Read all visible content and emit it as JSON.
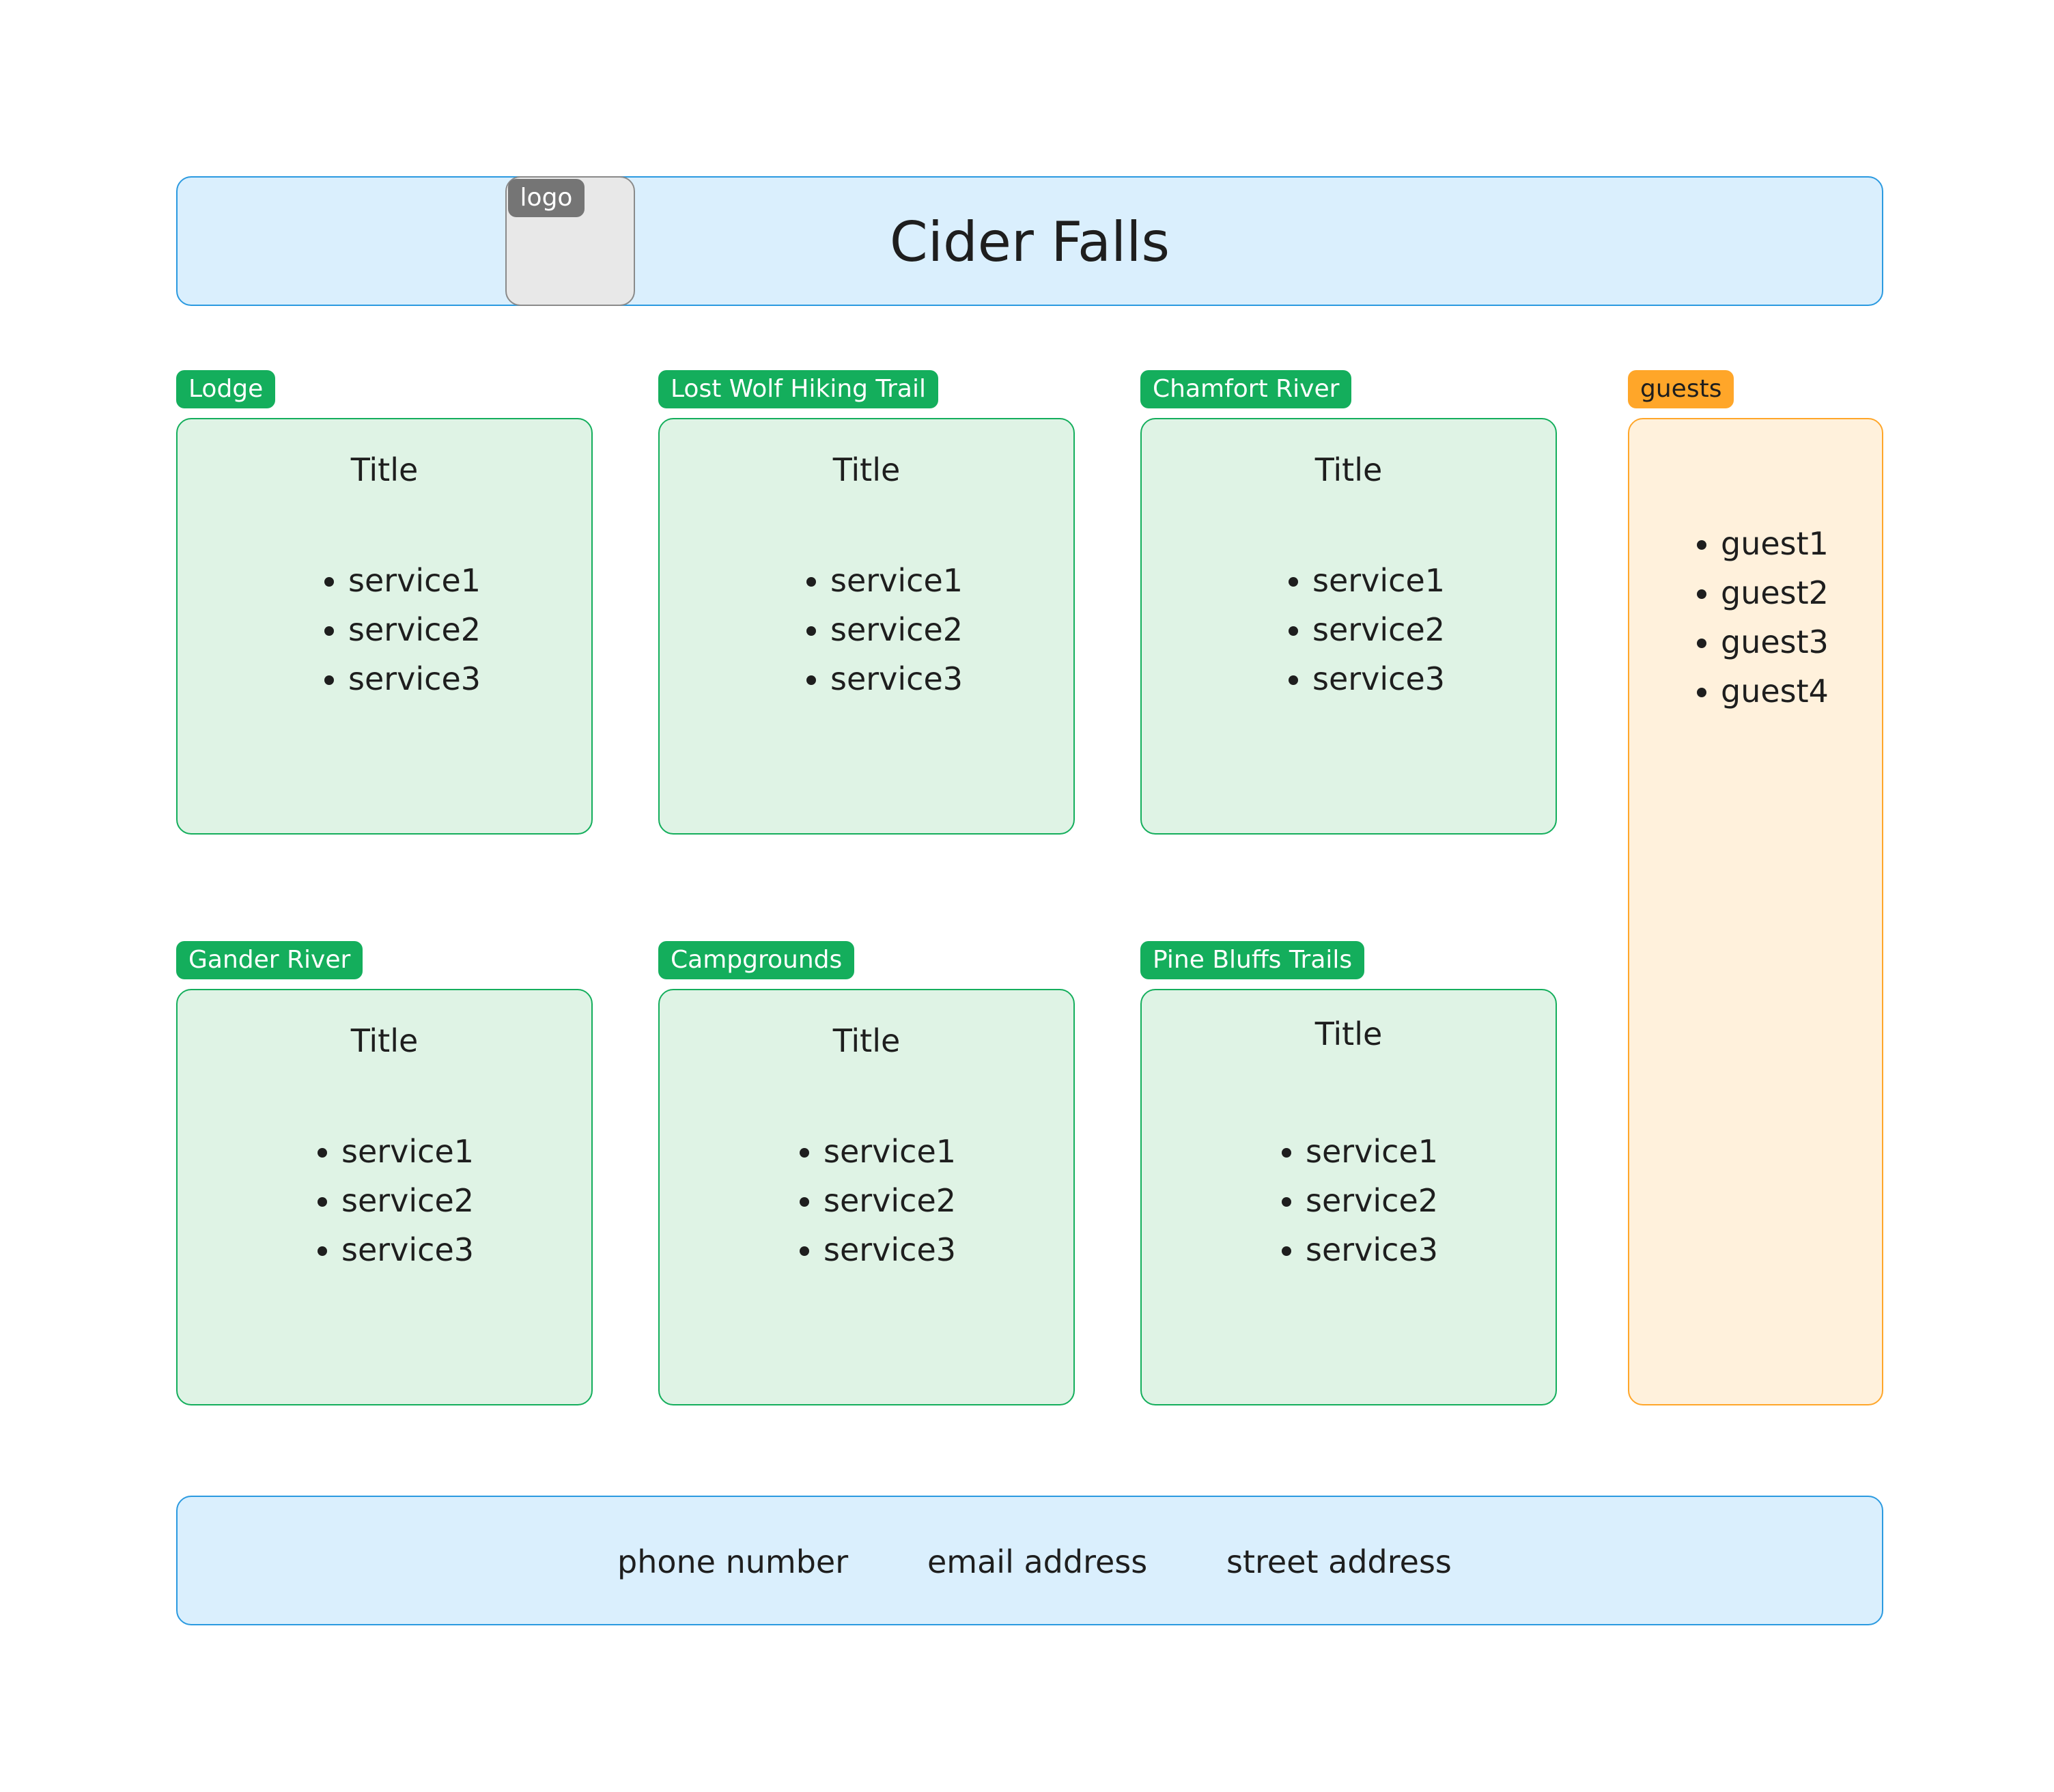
{
  "header": {
    "title": "Cider Falls",
    "logo_label": "logo"
  },
  "sections": [
    {
      "tag": "Lodge",
      "title": "Title",
      "services": [
        "service1",
        "service2",
        "service3"
      ]
    },
    {
      "tag": "Lost Wolf Hiking Trail",
      "title": "Title",
      "services": [
        "service1",
        "service2",
        "service3"
      ]
    },
    {
      "tag": "Chamfort River",
      "title": "Title",
      "services": [
        "service1",
        "service2",
        "service3"
      ]
    },
    {
      "tag": "Gander River",
      "title": "Title",
      "services": [
        "service1",
        "service2",
        "service3"
      ]
    },
    {
      "tag": "Campgrounds",
      "title": "Title",
      "services": [
        "service1",
        "service2",
        "service3"
      ]
    },
    {
      "tag": "Pine Bluffs Trails",
      "title": "Title",
      "services": [
        "service1",
        "service2",
        "service3"
      ]
    }
  ],
  "guests": {
    "tag": "guests",
    "items": [
      "guest1",
      "guest2",
      "guest3",
      "guest4"
    ]
  },
  "footer": {
    "phone": "phone number",
    "email": "email address",
    "street": "street address"
  },
  "colors": {
    "header_fill": "#daeffd",
    "header_border": "#2b9ae0",
    "card_fill": "#dff3e5",
    "card_border": "#14ae5c",
    "guests_fill": "#fff1dc",
    "guests_border": "#ffa629",
    "logo_tag": "#757575"
  }
}
